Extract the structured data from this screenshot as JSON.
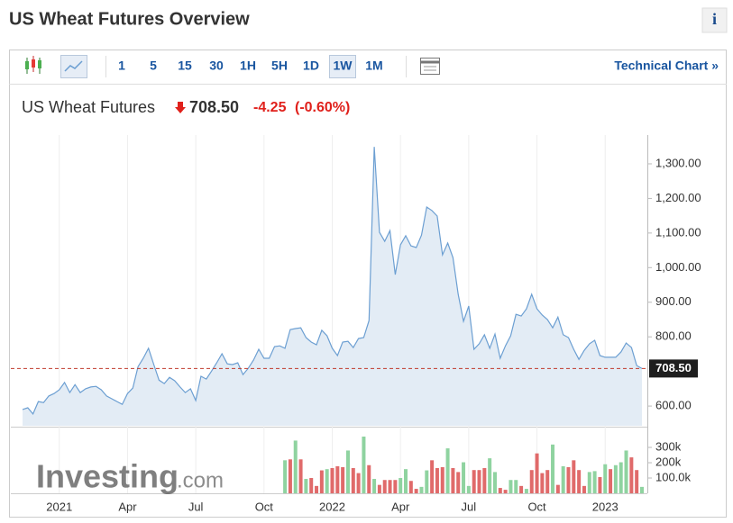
{
  "header": {
    "title": "US Wheat Futures Overview",
    "info": "i"
  },
  "toolbar": {
    "intervals": [
      "1",
      "5",
      "15",
      "30",
      "1H",
      "5H",
      "1D",
      "1W",
      "1M"
    ],
    "selected": 7,
    "link": "Technical Chart »"
  },
  "quote": {
    "name": "US Wheat Futures",
    "change": "-4.25",
    "change_pct": "(-0.60%)"
  },
  "watermark": {
    "brand": "Investing",
    "suffix": ".com"
  },
  "chart_data": [
    {
      "type": "area",
      "color": "#6c9fd2",
      "fill": "#e3ecf5",
      "categories": [
        null,
        null,
        null,
        null,
        null,
        null,
        null,
        "2021",
        null,
        null,
        null,
        null,
        null,
        null,
        null,
        null,
        null,
        null,
        null,
        null,
        "Apr",
        null,
        null,
        null,
        null,
        null,
        null,
        null,
        null,
        null,
        null,
        null,
        null,
        "Jul",
        null,
        null,
        null,
        null,
        null,
        null,
        null,
        null,
        null,
        null,
        null,
        null,
        "Oct",
        null,
        null,
        null,
        null,
        null,
        null,
        null,
        null,
        null,
        null,
        null,
        null,
        "2022",
        null,
        null,
        null,
        null,
        null,
        null,
        null,
        null,
        null,
        null,
        null,
        null,
        "Apr",
        null,
        null,
        null,
        null,
        null,
        null,
        null,
        null,
        null,
        null,
        null,
        null,
        "Jul",
        null,
        null,
        null,
        null,
        null,
        null,
        null,
        null,
        null,
        null,
        null,
        null,
        "Oct",
        null,
        null,
        null,
        null,
        null,
        null,
        null,
        null,
        null,
        null,
        null,
        null,
        "2023",
        null,
        null,
        null,
        null,
        null,
        null,
        null
      ],
      "values": [
        590,
        595,
        577,
        613,
        610,
        629,
        636,
        647,
        668,
        639,
        662,
        639,
        650,
        655,
        657,
        647,
        629,
        621,
        613,
        605,
        636,
        652,
        714,
        738,
        767,
        720,
        675,
        665,
        683,
        673,
        655,
        639,
        650,
        616,
        686,
        678,
        701,
        725,
        751,
        722,
        720,
        725,
        691,
        709,
        733,
        764,
        738,
        738,
        772,
        774,
        767,
        821,
        824,
        826,
        798,
        785,
        777,
        819,
        803,
        767,
        746,
        785,
        787,
        769,
        795,
        798,
        847,
        1349,
        1102,
        1076,
        1107,
        980,
        1066,
        1092,
        1063,
        1058,
        1094,
        1175,
        1165,
        1149,
        1037,
        1071,
        1029,
        923,
        845,
        889,
        764,
        780,
        806,
        767,
        808,
        738,
        774,
        803,
        865,
        860,
        881,
        923,
        881,
        863,
        850,
        826,
        857,
        806,
        798,
        764,
        735,
        761,
        780,
        790,
        746,
        741,
        741,
        741,
        756,
        782,
        769,
        717,
        708.5
      ],
      "ylim": [
        543,
        1378
      ],
      "yticks": [
        {
          "value": 600,
          "label": "600.00"
        },
        {
          "value": 800,
          "label": "800.00"
        },
        {
          "value": 900,
          "label": "900.00"
        },
        {
          "value": 1000,
          "label": "1,000.00"
        },
        {
          "value": 1100,
          "label": "1,100.00"
        },
        {
          "value": 1200,
          "label": "1,200.00"
        },
        {
          "value": 1300,
          "label": "1,300.00"
        }
      ],
      "last": {
        "value": 708.5,
        "label": "708.50",
        "color": "#c0392b"
      },
      "grid": true
    },
    {
      "type": "bar",
      "values": [
        null,
        null,
        null,
        null,
        null,
        null,
        null,
        null,
        null,
        null,
        null,
        null,
        null,
        null,
        null,
        null,
        null,
        null,
        null,
        null,
        null,
        null,
        null,
        null,
        null,
        null,
        null,
        null,
        null,
        null,
        null,
        null,
        null,
        null,
        null,
        null,
        null,
        null,
        null,
        null,
        null,
        null,
        null,
        null,
        null,
        null,
        null,
        null,
        null,
        null,
        216000,
        222000,
        345000,
        222000,
        94000,
        100000,
        48000,
        150000,
        158000,
        165000,
        177000,
        171000,
        280000,
        165000,
        132000,
        371000,
        184000,
        94000,
        55000,
        87000,
        87000,
        87000,
        100000,
        158000,
        81000,
        29000,
        42000,
        150000,
        216000,
        165000,
        171000,
        294000,
        165000,
        139000,
        203000,
        48000,
        152000,
        152000,
        165000,
        229000,
        139000,
        35000,
        23000,
        87000,
        87000,
        48000,
        29000,
        152000,
        261000,
        132000,
        152000,
        319000,
        55000,
        177000,
        171000,
        216000,
        152000,
        48000,
        139000,
        145000,
        106000,
        190000,
        158000,
        184000,
        203000,
        280000,
        235000,
        152000,
        42000
      ],
      "colors": [
        null,
        null,
        null,
        null,
        null,
        null,
        null,
        null,
        null,
        null,
        null,
        null,
        null,
        null,
        null,
        null,
        null,
        null,
        null,
        null,
        null,
        null,
        null,
        null,
        null,
        null,
        null,
        null,
        null,
        null,
        null,
        null,
        null,
        null,
        null,
        null,
        null,
        null,
        null,
        null,
        null,
        null,
        null,
        null,
        null,
        null,
        null,
        null,
        null,
        null,
        "#8fd3a0",
        "#e06a6a",
        "#8fd3a0",
        "#e06a6a",
        "#8fd3a0",
        "#e06a6a",
        "#e06a6a",
        "#e06a6a",
        "#8fd3a0",
        "#e06a6a",
        "#e06a6a",
        "#e06a6a",
        "#8fd3a0",
        "#e06a6a",
        "#e06a6a",
        "#8fd3a0",
        "#e06a6a",
        "#8fd3a0",
        "#e06a6a",
        "#e06a6a",
        "#e06a6a",
        "#e06a6a",
        "#8fd3a0",
        "#8fd3a0",
        "#e06a6a",
        "#e06a6a",
        "#8fd3a0",
        "#8fd3a0",
        "#e06a6a",
        "#e06a6a",
        "#e06a6a",
        "#8fd3a0",
        "#e06a6a",
        "#e06a6a",
        "#8fd3a0",
        "#8fd3a0",
        "#e06a6a",
        "#e06a6a",
        "#e06a6a",
        "#8fd3a0",
        "#8fd3a0",
        "#e06a6a",
        "#e06a6a",
        "#8fd3a0",
        "#8fd3a0",
        "#e06a6a",
        "#8fd3a0",
        "#e06a6a",
        "#e06a6a",
        "#e06a6a",
        "#e06a6a",
        "#8fd3a0",
        "#e06a6a",
        "#8fd3a0",
        "#e06a6a",
        "#e06a6a",
        "#e06a6a",
        "#e06a6a",
        "#8fd3a0",
        "#8fd3a0",
        "#e06a6a",
        "#8fd3a0",
        "#e06a6a",
        "#8fd3a0",
        "#8fd3a0",
        "#8fd3a0",
        "#e06a6a",
        "#e06a6a",
        "#8fd3a0"
      ],
      "ylim": [
        0,
        424000
      ],
      "yticks": [
        {
          "value": 100000,
          "label": "100.0k"
        },
        {
          "value": 200000,
          "label": "200k"
        },
        {
          "value": 300000,
          "label": "300k"
        }
      ]
    }
  ]
}
